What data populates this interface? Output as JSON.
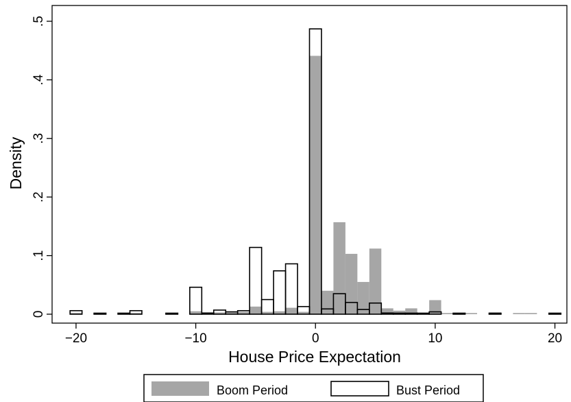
{
  "chart_data": {
    "type": "bar",
    "xlabel": "House Price Expectation",
    "ylabel": "Density",
    "xlim": [
      -22,
      21
    ],
    "ylim": [
      0,
      0.5
    ],
    "x_ticks": [
      -20,
      -10,
      0,
      10,
      20
    ],
    "x_tick_labels": [
      "−20",
      "−10",
      "0",
      "10",
      "20"
    ],
    "y_ticks": [
      0,
      0.1,
      0.2,
      0.3,
      0.4,
      0.5
    ],
    "y_tick_labels": [
      "0",
      ".1",
      ".2",
      ".3",
      ".4",
      ".5"
    ],
    "bin_width": 1,
    "grid": false,
    "legend": {
      "position": "bottom",
      "entries": [
        "Boom Period",
        "Bust Period"
      ]
    },
    "series": [
      {
        "name": "Boom Period",
        "style": "filled",
        "color": "#a6a6a6",
        "bins": [
          {
            "x": -20,
            "y": 0.002
          },
          {
            "x": -18,
            "y": 0.001
          },
          {
            "x": -16,
            "y": 0.001
          },
          {
            "x": -15,
            "y": 0.002
          },
          {
            "x": -12,
            "y": 0.001
          },
          {
            "x": -10,
            "y": 0.005
          },
          {
            "x": -9,
            "y": 0.001
          },
          {
            "x": -8,
            "y": 0.003
          },
          {
            "x": -7,
            "y": 0.003
          },
          {
            "x": -6,
            "y": 0.004
          },
          {
            "x": -5,
            "y": 0.013
          },
          {
            "x": -4,
            "y": 0.004
          },
          {
            "x": -3,
            "y": 0.005
          },
          {
            "x": -2,
            "y": 0.011
          },
          {
            "x": -1,
            "y": 0.004
          },
          {
            "x": 0,
            "y": 0.441
          },
          {
            "x": 1,
            "y": 0.04
          },
          {
            "x": 2,
            "y": 0.157
          },
          {
            "x": 3,
            "y": 0.103
          },
          {
            "x": 4,
            "y": 0.055
          },
          {
            "x": 5,
            "y": 0.112
          },
          {
            "x": 6,
            "y": 0.01
          },
          {
            "x": 7,
            "y": 0.006
          },
          {
            "x": 8,
            "y": 0.01
          },
          {
            "x": 9,
            "y": 0.002
          },
          {
            "x": 10,
            "y": 0.024
          },
          {
            "x": 11,
            "y": 0.002
          },
          {
            "x": 12,
            "y": 0.002
          },
          {
            "x": 13,
            "y": 0.002
          },
          {
            "x": 15,
            "y": 0.003
          },
          {
            "x": 17,
            "y": 0.002
          },
          {
            "x": 18,
            "y": 0.002
          },
          {
            "x": 20,
            "y": 0.002
          }
        ]
      },
      {
        "name": "Bust Period",
        "style": "outline",
        "color": "#000000",
        "bins": [
          {
            "x": -20,
            "y": 0.006
          },
          {
            "x": -18,
            "y": 0.001
          },
          {
            "x": -16,
            "y": 0.001
          },
          {
            "x": -15,
            "y": 0.006
          },
          {
            "x": -12,
            "y": 0.001
          },
          {
            "x": -10,
            "y": 0.046
          },
          {
            "x": -9,
            "y": 0.002
          },
          {
            "x": -8,
            "y": 0.007
          },
          {
            "x": -7,
            "y": 0.004
          },
          {
            "x": -6,
            "y": 0.006
          },
          {
            "x": -5,
            "y": 0.114
          },
          {
            "x": -4,
            "y": 0.025
          },
          {
            "x": -3,
            "y": 0.074
          },
          {
            "x": -2,
            "y": 0.086
          },
          {
            "x": -1,
            "y": 0.013
          },
          {
            "x": 0,
            "y": 0.487
          },
          {
            "x": 1,
            "y": 0.009
          },
          {
            "x": 2,
            "y": 0.035
          },
          {
            "x": 3,
            "y": 0.02
          },
          {
            "x": 4,
            "y": 0.008
          },
          {
            "x": 5,
            "y": 0.019
          },
          {
            "x": 6,
            "y": 0.002
          },
          {
            "x": 7,
            "y": 0.001
          },
          {
            "x": 8,
            "y": 0.001
          },
          {
            "x": 9,
            "y": 0.001
          },
          {
            "x": 10,
            "y": 0.004
          },
          {
            "x": 12,
            "y": 0.001
          },
          {
            "x": 15,
            "y": 0.001
          },
          {
            "x": 20,
            "y": 0.001
          }
        ]
      }
    ]
  }
}
